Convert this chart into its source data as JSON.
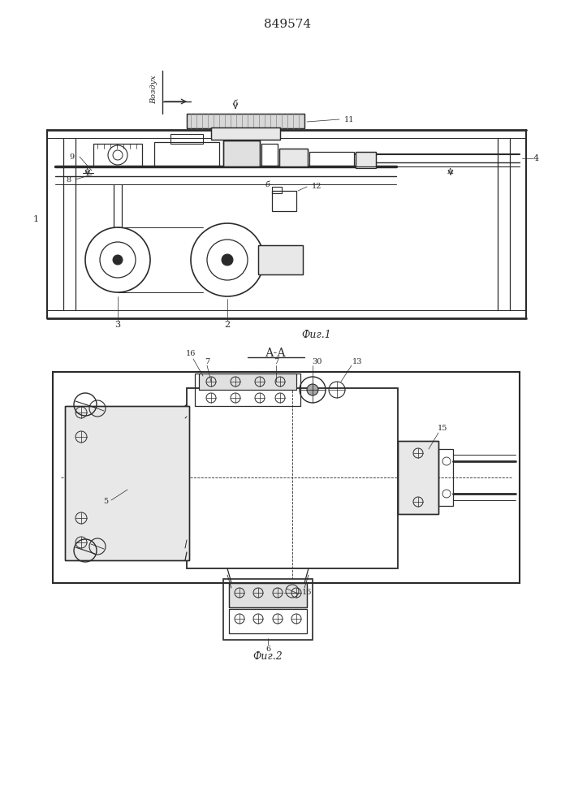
{
  "patent_number": "849574",
  "line_color": "#2a2a2a",
  "fig1_label": "Фиг.1",
  "fig2_label": "Фиг.2",
  "section_label": "А-А",
  "vozduh": "Воздух"
}
